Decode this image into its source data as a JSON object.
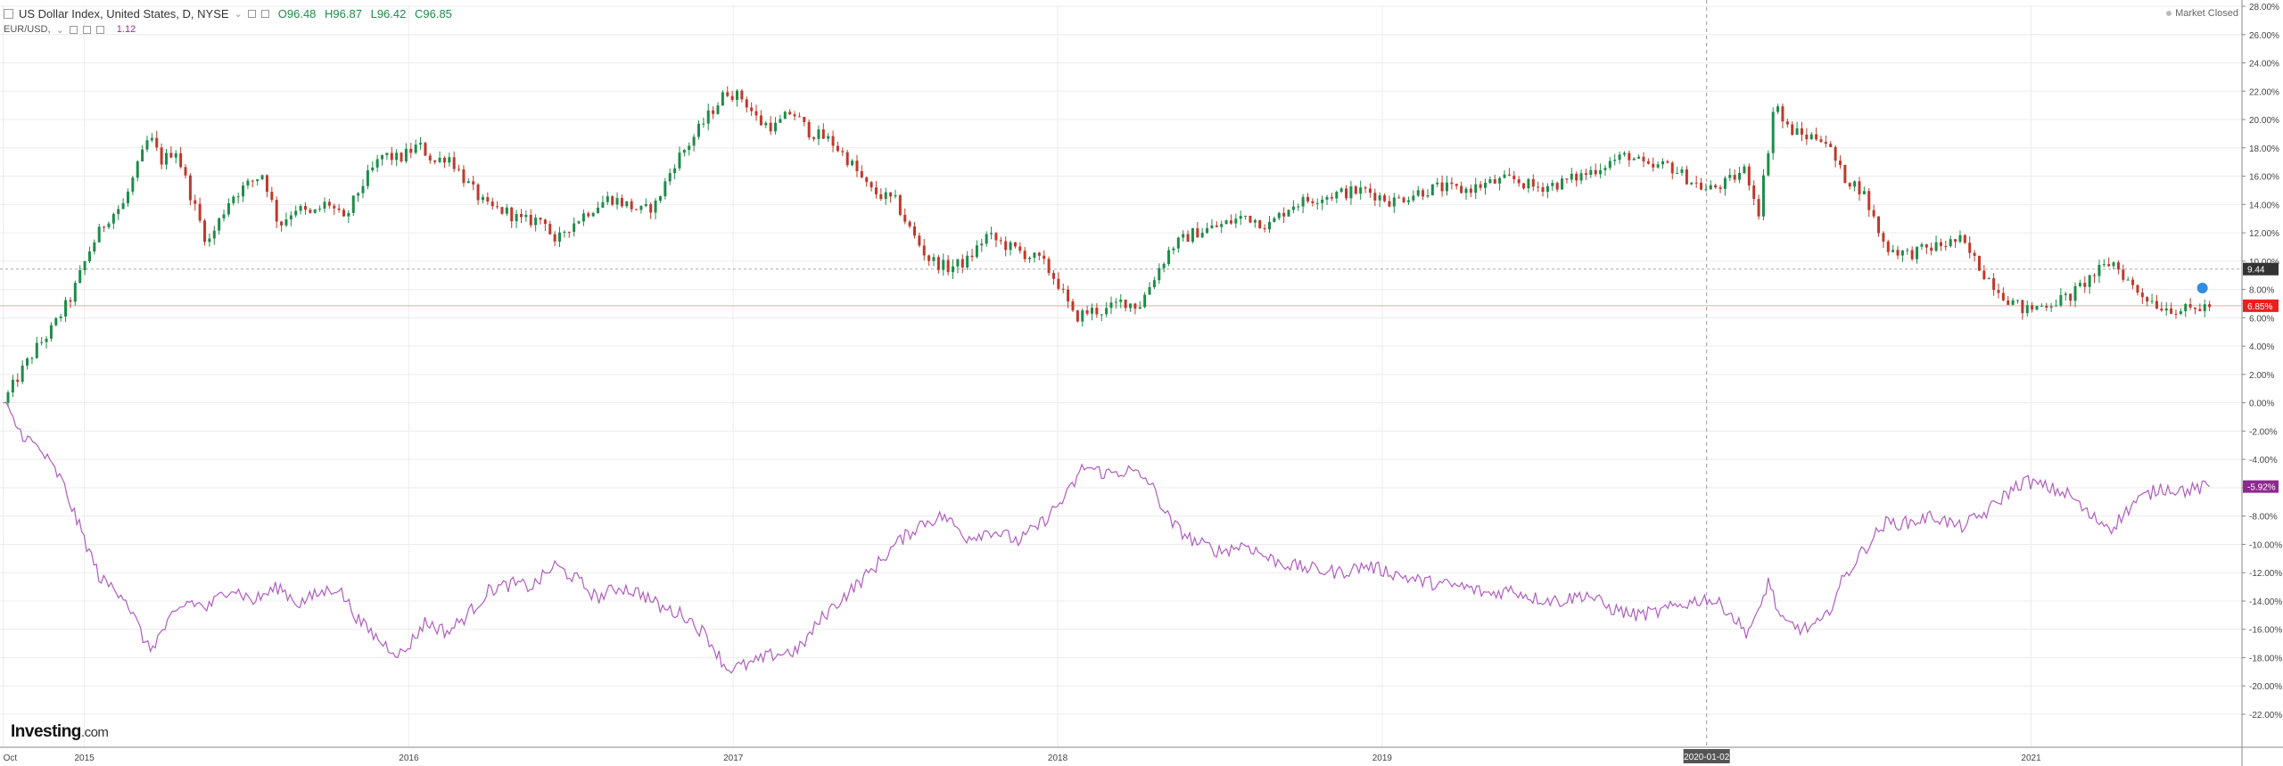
{
  "header": {
    "title": "US Dollar Index, United States, D, NYSE",
    "ohlc": {
      "open": "O96.48",
      "high": "H96.87",
      "low": "L96.42",
      "close": "C96.85"
    },
    "compare_name": "EUR/USD,",
    "compare_value": "1.12",
    "status": "Market Closed"
  },
  "logo": {
    "brand": "Investing",
    "suffix": ".com"
  },
  "colors": {
    "up": "#1e8c4a",
    "down": "#c0392b",
    "compare_line": "#b05cc0",
    "current_line": "#f4a8a8",
    "badge_price": "#e82020",
    "badge_compare": "#8e2a8e",
    "badge_dashed": "#333333",
    "grid": "#ececec"
  },
  "chart_data": {
    "type": "line",
    "title": "US Dollar Index, United States, D, NYSE",
    "ylabel": "",
    "ylim": [
      -22,
      28
    ],
    "y_ticks": [
      "28.00%",
      "26.00%",
      "24.00%",
      "22.00%",
      "20.00%",
      "18.00%",
      "16.00%",
      "14.00%",
      "12.00%",
      "10.00%",
      "8.00%",
      "6.00%",
      "4.00%",
      "2.00%",
      "0.00%",
      "-2.00%",
      "-4.00%",
      "-6.00%",
      "-8.00%",
      "-10.00%",
      "-12.00%",
      "-14.00%",
      "-16.00%",
      "-18.00%",
      "-20.00%",
      "-22.00%"
    ],
    "x_ticks": [
      {
        "t": 2014.75,
        "label": "Oct"
      },
      {
        "t": 2015.0,
        "label": "2015"
      },
      {
        "t": 2016.0,
        "label": "2016"
      },
      {
        "t": 2017.0,
        "label": "2017"
      },
      {
        "t": 2018.0,
        "label": "2018"
      },
      {
        "t": 2019.0,
        "label": "2019"
      },
      {
        "t": 2021.0,
        "label": "2021"
      }
    ],
    "xlim": [
      2014.74,
      2021.65
    ],
    "crosshair": {
      "t": 2020.0,
      "label": "2020-01-02"
    },
    "legend": "top-left",
    "grid": true,
    "series": [
      {
        "name": "US Dollar Index",
        "style": "candles",
        "points": [
          [
            2014.75,
            0.0
          ],
          [
            2014.8,
            2.0
          ],
          [
            2014.85,
            3.8
          ],
          [
            2014.9,
            5.2
          ],
          [
            2014.96,
            7.5
          ],
          [
            2015.02,
            11.0
          ],
          [
            2015.07,
            13.0
          ],
          [
            2015.12,
            14.0
          ],
          [
            2015.2,
            18.8
          ],
          [
            2015.24,
            17.0
          ],
          [
            2015.28,
            18.0
          ],
          [
            2015.33,
            14.5
          ],
          [
            2015.38,
            11.2
          ],
          [
            2015.45,
            14.5
          ],
          [
            2015.55,
            16.2
          ],
          [
            2015.6,
            12.5
          ],
          [
            2015.65,
            13.8
          ],
          [
            2015.7,
            13.2
          ],
          [
            2015.75,
            14.2
          ],
          [
            2015.8,
            12.8
          ],
          [
            2015.85,
            15.2
          ],
          [
            2015.92,
            17.5
          ],
          [
            2015.97,
            17.2
          ],
          [
            2016.03,
            18.2
          ],
          [
            2016.08,
            17.0
          ],
          [
            2016.12,
            17.5
          ],
          [
            2016.18,
            15.5
          ],
          [
            2016.24,
            13.8
          ],
          [
            2016.3,
            13.5
          ],
          [
            2016.35,
            12.8
          ],
          [
            2016.42,
            13.0
          ],
          [
            2016.45,
            11.0
          ],
          [
            2016.48,
            12.2
          ],
          [
            2016.55,
            13.5
          ],
          [
            2016.62,
            14.5
          ],
          [
            2016.67,
            14.0
          ],
          [
            2016.72,
            13.5
          ],
          [
            2016.76,
            14.0
          ],
          [
            2016.82,
            17.0
          ],
          [
            2016.87,
            18.5
          ],
          [
            2016.93,
            20.5
          ],
          [
            2016.98,
            22.0
          ],
          [
            2017.03,
            21.5
          ],
          [
            2017.08,
            19.8
          ],
          [
            2017.13,
            19.5
          ],
          [
            2017.18,
            20.6
          ],
          [
            2017.23,
            19.2
          ],
          [
            2017.3,
            18.5
          ],
          [
            2017.36,
            17.0
          ],
          [
            2017.42,
            15.0
          ],
          [
            2017.5,
            14.2
          ],
          [
            2017.55,
            12.0
          ],
          [
            2017.6,
            10.2
          ],
          [
            2017.66,
            9.5
          ],
          [
            2017.72,
            10.0
          ],
          [
            2017.78,
            11.8
          ],
          [
            2017.85,
            11.0
          ],
          [
            2017.9,
            10.5
          ],
          [
            2017.95,
            10.0
          ],
          [
            2018.0,
            8.5
          ],
          [
            2018.05,
            6.0
          ],
          [
            2018.1,
            6.5
          ],
          [
            2018.15,
            6.5
          ],
          [
            2018.2,
            7.2
          ],
          [
            2018.25,
            6.8
          ],
          [
            2018.3,
            9.0
          ],
          [
            2018.35,
            11.0
          ],
          [
            2018.42,
            12.0
          ],
          [
            2018.5,
            12.5
          ],
          [
            2018.58,
            13.2
          ],
          [
            2018.65,
            12.5
          ],
          [
            2018.72,
            14.0
          ],
          [
            2018.8,
            14.5
          ],
          [
            2018.87,
            14.8
          ],
          [
            2018.95,
            15.0
          ],
          [
            2019.03,
            14.2
          ],
          [
            2019.1,
            14.8
          ],
          [
            2019.17,
            15.2
          ],
          [
            2019.25,
            15.0
          ],
          [
            2019.33,
            15.5
          ],
          [
            2019.4,
            15.8
          ],
          [
            2019.47,
            15.2
          ],
          [
            2019.55,
            15.5
          ],
          [
            2019.63,
            16.2
          ],
          [
            2019.7,
            17.0
          ],
          [
            2019.76,
            17.5
          ],
          [
            2019.82,
            16.5
          ],
          [
            2019.88,
            16.8
          ],
          [
            2019.93,
            16.0
          ],
          [
            2020.0,
            15.0
          ],
          [
            2020.06,
            15.5
          ],
          [
            2020.12,
            16.5
          ],
          [
            2020.16,
            13.5
          ],
          [
            2020.19,
            18.0
          ],
          [
            2020.21,
            21.5
          ],
          [
            2020.24,
            19.5
          ],
          [
            2020.3,
            18.8
          ],
          [
            2020.36,
            18.8
          ],
          [
            2020.42,
            16.0
          ],
          [
            2020.48,
            15.0
          ],
          [
            2020.55,
            11.0
          ],
          [
            2020.62,
            10.5
          ],
          [
            2020.7,
            11.0
          ],
          [
            2020.78,
            11.5
          ],
          [
            2020.86,
            9.0
          ],
          [
            2020.92,
            7.5
          ],
          [
            2020.98,
            6.5
          ],
          [
            2021.05,
            7.0
          ],
          [
            2021.12,
            7.5
          ],
          [
            2021.18,
            8.8
          ],
          [
            2021.25,
            10.0
          ],
          [
            2021.32,
            8.0
          ],
          [
            2021.4,
            6.8
          ],
          [
            2021.48,
            6.5
          ],
          [
            2021.55,
            6.85
          ]
        ]
      },
      {
        "name": "EUR/USD",
        "style": "line",
        "points": [
          [
            2014.75,
            0.0
          ],
          [
            2014.8,
            -2.0
          ],
          [
            2014.87,
            -3.5
          ],
          [
            2014.93,
            -5.5
          ],
          [
            2014.98,
            -8.5
          ],
          [
            2015.05,
            -12.5
          ],
          [
            2015.12,
            -13.5
          ],
          [
            2015.2,
            -17.5
          ],
          [
            2015.26,
            -15.5
          ],
          [
            2015.32,
            -14.0
          ],
          [
            2015.38,
            -14.5
          ],
          [
            2015.45,
            -13.0
          ],
          [
            2015.52,
            -14.0
          ],
          [
            2015.6,
            -13.0
          ],
          [
            2015.66,
            -14.2
          ],
          [
            2015.72,
            -13.5
          ],
          [
            2015.78,
            -13.0
          ],
          [
            2015.85,
            -15.5
          ],
          [
            2015.92,
            -17.0
          ],
          [
            2015.98,
            -17.8
          ],
          [
            2016.05,
            -15.5
          ],
          [
            2016.12,
            -16.2
          ],
          [
            2016.18,
            -15.0
          ],
          [
            2016.25,
            -13.2
          ],
          [
            2016.32,
            -12.8
          ],
          [
            2016.38,
            -13.0
          ],
          [
            2016.45,
            -11.5
          ],
          [
            2016.52,
            -12.5
          ],
          [
            2016.58,
            -13.8
          ],
          [
            2016.65,
            -13.0
          ],
          [
            2016.72,
            -13.5
          ],
          [
            2016.78,
            -14.5
          ],
          [
            2016.85,
            -15.0
          ],
          [
            2016.92,
            -16.5
          ],
          [
            2016.98,
            -18.8
          ],
          [
            2017.05,
            -18.5
          ],
          [
            2017.12,
            -17.8
          ],
          [
            2017.2,
            -17.5
          ],
          [
            2017.28,
            -15.0
          ],
          [
            2017.35,
            -13.5
          ],
          [
            2017.42,
            -12.0
          ],
          [
            2017.5,
            -10.0
          ],
          [
            2017.58,
            -8.5
          ],
          [
            2017.65,
            -8.0
          ],
          [
            2017.72,
            -9.5
          ],
          [
            2017.8,
            -9.0
          ],
          [
            2017.88,
            -9.8
          ],
          [
            2017.95,
            -8.5
          ],
          [
            2018.03,
            -6.5
          ],
          [
            2018.08,
            -4.5
          ],
          [
            2018.15,
            -5.0
          ],
          [
            2018.22,
            -4.8
          ],
          [
            2018.28,
            -5.5
          ],
          [
            2018.35,
            -8.5
          ],
          [
            2018.42,
            -9.8
          ],
          [
            2018.5,
            -10.5
          ],
          [
            2018.58,
            -10.0
          ],
          [
            2018.65,
            -11.0
          ],
          [
            2018.72,
            -11.5
          ],
          [
            2018.8,
            -11.8
          ],
          [
            2018.87,
            -12.0
          ],
          [
            2018.95,
            -11.5
          ],
          [
            2019.03,
            -12.0
          ],
          [
            2019.1,
            -12.5
          ],
          [
            2019.17,
            -12.8
          ],
          [
            2019.25,
            -13.0
          ],
          [
            2019.33,
            -13.5
          ],
          [
            2019.4,
            -13.2
          ],
          [
            2019.47,
            -13.8
          ],
          [
            2019.55,
            -14.0
          ],
          [
            2019.63,
            -13.5
          ],
          [
            2019.7,
            -14.5
          ],
          [
            2019.78,
            -15.0
          ],
          [
            2019.85,
            -14.8
          ],
          [
            2019.93,
            -14.2
          ],
          [
            2020.0,
            -13.8
          ],
          [
            2020.06,
            -14.5
          ],
          [
            2020.12,
            -16.2
          ],
          [
            2020.16,
            -15.0
          ],
          [
            2020.19,
            -12.5
          ],
          [
            2020.23,
            -15.5
          ],
          [
            2020.3,
            -16.0
          ],
          [
            2020.36,
            -15.5
          ],
          [
            2020.42,
            -12.5
          ],
          [
            2020.48,
            -10.5
          ],
          [
            2020.55,
            -8.5
          ],
          [
            2020.62,
            -8.5
          ],
          [
            2020.7,
            -8.0
          ],
          [
            2020.78,
            -8.8
          ],
          [
            2020.86,
            -7.8
          ],
          [
            2020.92,
            -6.5
          ],
          [
            2020.98,
            -5.5
          ],
          [
            2021.05,
            -6.0
          ],
          [
            2021.12,
            -6.5
          ],
          [
            2021.18,
            -8.0
          ],
          [
            2021.25,
            -8.8
          ],
          [
            2021.32,
            -7.0
          ],
          [
            2021.4,
            -6.0
          ],
          [
            2021.48,
            -6.2
          ],
          [
            2021.55,
            -5.92
          ]
        ]
      }
    ],
    "badges": [
      {
        "value": 9.44,
        "label": "9.44",
        "kind": "dashed"
      },
      {
        "value": 6.85,
        "label": "6.85%",
        "kind": "price"
      },
      {
        "value": -5.92,
        "label": "-5.92%",
        "kind": "compare"
      }
    ]
  }
}
